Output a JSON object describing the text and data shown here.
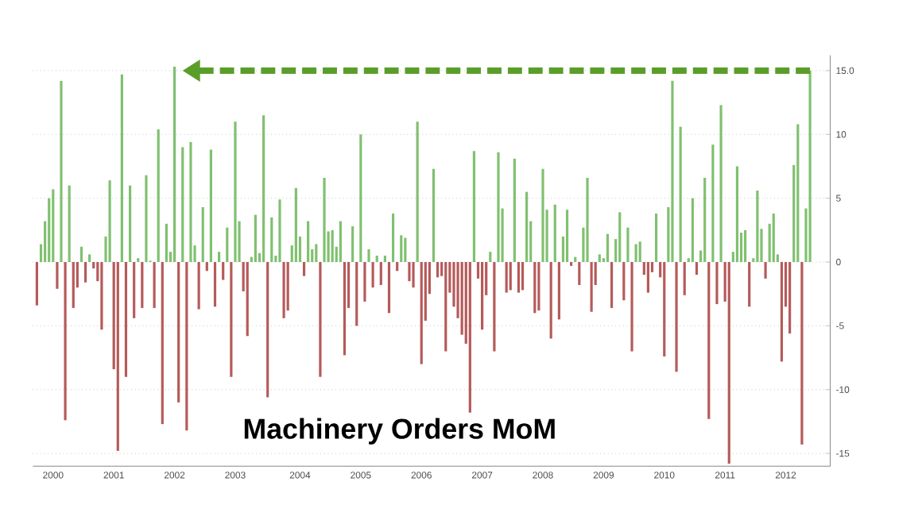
{
  "chart_data": {
    "type": "bar",
    "title": "Machinery Orders MoM",
    "categories": [
      null,
      null,
      null,
      null,
      "2000",
      null,
      null,
      null,
      null,
      null,
      null,
      null,
      null,
      null,
      null,
      null,
      null,
      null,
      null,
      "2001",
      null,
      null,
      null,
      null,
      null,
      null,
      null,
      null,
      null,
      null,
      null,
      null,
      null,
      null,
      "2002",
      null,
      null,
      null,
      null,
      null,
      null,
      null,
      null,
      null,
      null,
      null,
      null,
      null,
      null,
      "2003",
      null,
      null,
      null,
      null,
      null,
      null,
      null,
      null,
      null,
      null,
      null,
      null,
      null,
      null,
      null,
      "2004",
      null,
      null,
      null,
      null,
      null,
      null,
      null,
      null,
      null,
      null,
      null,
      null,
      null,
      null,
      "2005",
      null,
      null,
      null,
      null,
      null,
      null,
      null,
      null,
      null,
      null,
      null,
      null,
      null,
      null,
      "2006",
      null,
      null,
      null,
      null,
      null,
      null,
      null,
      null,
      null,
      null,
      null,
      null,
      null,
      null,
      "2007",
      null,
      null,
      null,
      null,
      null,
      null,
      null,
      null,
      null,
      null,
      null,
      null,
      null,
      null,
      "2008",
      null,
      null,
      null,
      null,
      null,
      null,
      null,
      null,
      null,
      null,
      null,
      null,
      null,
      null,
      "2009",
      null,
      null,
      null,
      null,
      null,
      null,
      null,
      null,
      null,
      null,
      null,
      null,
      null,
      null,
      "2010",
      null,
      null,
      null,
      null,
      null,
      null,
      null,
      null,
      null,
      null,
      null,
      null,
      null,
      null,
      "2011",
      null,
      null,
      null,
      null,
      null,
      null,
      null,
      null,
      null,
      null,
      null,
      null,
      null,
      null,
      "2012",
      null,
      null,
      null,
      null,
      null,
      null
    ],
    "values": [
      -3.4,
      1.4,
      3.2,
      5,
      5.7,
      -2.1,
      14.2,
      -12.4,
      6,
      -3.6,
      -2,
      1.2,
      -1.6,
      0.6,
      -0.5,
      -1.5,
      -5.3,
      2,
      6.4,
      -8.4,
      -14.8,
      14.7,
      -9,
      6,
      -4.4,
      0.3,
      -3.6,
      6.8,
      0.1,
      -3.6,
      10.4,
      -12.7,
      3,
      0.8,
      15.3,
      -11,
      9,
      -13.2,
      9.4,
      1.3,
      -3.7,
      4.3,
      -0.7,
      8.8,
      -3.5,
      0.8,
      -1.4,
      2.7,
      -9,
      11,
      3.2,
      -2.3,
      -5.8,
      0.4,
      3.7,
      0.7,
      11.5,
      -10.6,
      3.5,
      0.5,
      4.9,
      -4.4,
      -3.8,
      1.3,
      5.8,
      2,
      -1.1,
      3.2,
      1,
      1.4,
      -9,
      6.6,
      2.4,
      2.5,
      1.2,
      3.2,
      -7.3,
      -3.6,
      2.8,
      -5,
      10,
      -3.1,
      1,
      -2,
      0.5,
      -1.8,
      0.5,
      -4,
      3.8,
      -0.7,
      2.1,
      1.9,
      -1.5,
      -2,
      11,
      -8,
      -4.6,
      -2.5,
      7.3,
      -1.2,
      -1.1,
      -7,
      -2.4,
      -3.5,
      -4.4,
      -5.7,
      -6.4,
      -11.8,
      8.7,
      -1.3,
      -5.3,
      -2.6,
      0.8,
      -7,
      8.6,
      4.2,
      -2.4,
      -2.2,
      8.1,
      -2.4,
      -2.2,
      5.5,
      3.2,
      -4,
      -3.8,
      7.3,
      4.1,
      -6,
      4.5,
      -4.5,
      2,
      4.1,
      -0.3,
      0.4,
      -1.8,
      2.7,
      6.6,
      -3.9,
      -1.8,
      0.6,
      0.3,
      2.2,
      -3.6,
      1.8,
      3.9,
      -3,
      2.7,
      -7,
      1.4,
      1.6,
      -1,
      -2.4,
      -0.8,
      3.8,
      -1.2,
      -7.4,
      4.3,
      14.2,
      -8.6,
      10.6,
      -2.6,
      0.3,
      5,
      -1,
      0.9,
      6.6,
      -12.3,
      9.2,
      -3.3,
      12.3,
      -3.1,
      -15.8,
      0.8,
      7.5,
      2.3,
      2.5,
      -3.5,
      0.3,
      5.6,
      2.6,
      -1.3,
      3,
      3.8,
      0.6,
      -7.8,
      -3.5,
      -5.6,
      7.6,
      10.8,
      -14.3,
      4.2,
      15
    ],
    "colors": [
      "#b65a5a",
      "#80c070",
      "#80c070",
      "#80c070",
      "#80c070",
      "#b65a5a",
      "#80c070",
      "#b65a5a",
      "#80c070",
      "#b65a5a",
      "#b65a5a",
      "#80c070",
      "#b65a5a",
      "#80c070",
      "#b65a5a",
      "#b65a5a",
      "#b65a5a",
      "#80c070",
      "#80c070",
      "#b65a5a",
      "#b65a5a",
      "#80c070",
      "#b65a5a",
      "#80c070",
      "#b65a5a",
      "#80c070",
      "#b65a5a",
      "#80c070",
      "#80c070",
      "#b65a5a",
      "#80c070",
      "#b65a5a",
      "#80c070",
      "#80c070",
      "#80c070",
      "#b65a5a",
      "#80c070",
      "#b65a5a",
      "#80c070",
      "#80c070",
      "#b65a5a",
      "#80c070",
      "#b65a5a",
      "#80c070",
      "#b65a5a",
      "#80c070",
      "#b65a5a",
      "#80c070",
      "#b65a5a",
      "#80c070",
      "#80c070",
      "#b65a5a",
      "#b65a5a",
      "#80c070",
      "#80c070",
      "#80c070",
      "#80c070",
      "#b65a5a",
      "#80c070",
      "#80c070",
      "#80c070",
      "#b65a5a",
      "#b65a5a",
      "#80c070",
      "#80c070",
      "#80c070",
      "#b65a5a",
      "#80c070",
      "#80c070",
      "#80c070",
      "#b65a5a",
      "#80c070",
      "#80c070",
      "#80c070",
      "#80c070",
      "#80c070",
      "#b65a5a",
      "#b65a5a",
      "#80c070",
      "#b65a5a",
      "#80c070",
      "#b65a5a",
      "#80c070",
      "#b65a5a",
      "#80c070",
      "#b65a5a",
      "#80c070",
      "#b65a5a",
      "#80c070",
      "#b65a5a",
      "#80c070",
      "#80c070",
      "#b65a5a",
      "#b65a5a",
      "#80c070",
      "#b65a5a",
      "#b65a5a",
      "#b65a5a",
      "#80c070",
      "#b65a5a",
      "#b65a5a",
      "#b65a5a",
      "#b65a5a",
      "#b65a5a",
      "#b65a5a",
      "#b65a5a",
      "#b65a5a",
      "#b65a5a",
      "#80c070",
      "#b65a5a",
      "#b65a5a",
      "#b65a5a",
      "#80c070",
      "#b65a5a",
      "#80c070",
      "#80c070",
      "#b65a5a",
      "#b65a5a",
      "#80c070",
      "#b65a5a",
      "#b65a5a",
      "#80c070",
      "#80c070",
      "#b65a5a",
      "#b65a5a",
      "#80c070",
      "#80c070",
      "#b65a5a",
      "#80c070",
      "#b65a5a",
      "#80c070",
      "#80c070",
      "#b65a5a",
      "#80c070",
      "#b65a5a",
      "#80c070",
      "#80c070",
      "#b65a5a",
      "#b65a5a",
      "#80c070",
      "#80c070",
      "#80c070",
      "#b65a5a",
      "#80c070",
      "#80c070",
      "#b65a5a",
      "#80c070",
      "#b65a5a",
      "#80c070",
      "#80c070",
      "#b65a5a",
      "#b65a5a",
      "#b65a5a",
      "#80c070",
      "#b65a5a",
      "#b65a5a",
      "#80c070",
      "#80c070",
      "#b65a5a",
      "#80c070",
      "#b65a5a",
      "#80c070",
      "#80c070",
      "#b65a5a",
      "#80c070",
      "#80c070",
      "#b65a5a",
      "#80c070",
      "#b65a5a",
      "#80c070",
      "#b65a5a",
      "#b65a5a",
      "#80c070",
      "#80c070",
      "#80c070",
      "#80c070",
      "#b65a5a",
      "#80c070",
      "#80c070",
      "#80c070",
      "#b65a5a",
      "#80c070",
      "#80c070",
      "#80c070",
      "#b65a5a",
      "#b65a5a",
      "#b65a5a",
      "#80c070",
      "#80c070",
      "#b65a5a",
      "#80c070",
      "#80c070"
    ],
    "ylim": [
      -16,
      16.2
    ],
    "yticks": [
      -15,
      -10,
      -5,
      0,
      5,
      10,
      {
        "value": 15,
        "label": "15.0"
      }
    ],
    "grid": "y",
    "ref_lines": [
      {
        "axis": "y",
        "value": 15,
        "color": "#5a9e2a",
        "line_style": "dashed"
      }
    ]
  }
}
